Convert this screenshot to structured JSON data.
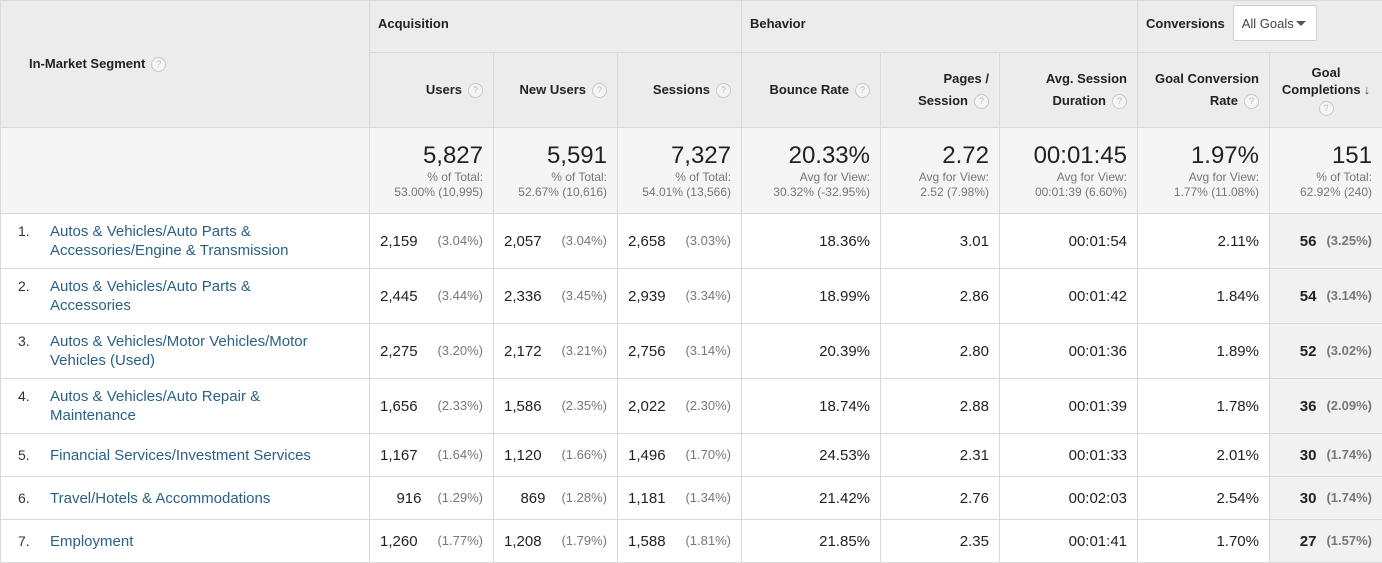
{
  "header": {
    "segment_label": "In-Market Segment",
    "groups": {
      "acquisition": "Acquisition",
      "behavior": "Behavior",
      "conversions": "Conversions"
    },
    "goal_select_value": "All Goals",
    "columns": {
      "users": "Users",
      "new_users": "New Users",
      "sessions": "Sessions",
      "bounce_rate": "Bounce Rate",
      "pages_line1": "Pages /",
      "pages_line2": "Session",
      "duration_line1": "Avg. Session",
      "duration_line2": "Duration",
      "gcr_line1": "Goal Conversion",
      "gcr_line2": "Rate",
      "gc_line1": "Goal",
      "gc_line2": "Completions"
    },
    "help_glyph": "?",
    "sort_glyph": "↓"
  },
  "totals": {
    "users": {
      "value": "5,827",
      "line1": "% of Total:",
      "line2": "53.00% (10,995)"
    },
    "new_users": {
      "value": "5,591",
      "line1": "% of Total:",
      "line2": "52.67% (10,616)"
    },
    "sessions": {
      "value": "7,327",
      "line1": "% of Total:",
      "line2": "54.01% (13,566)"
    },
    "bounce_rate": {
      "value": "20.33%",
      "line1": "Avg for View:",
      "line2": "30.32% (-32.95%)"
    },
    "pages": {
      "value": "2.72",
      "line1": "Avg for View:",
      "line2": "2.52 (7.98%)"
    },
    "duration": {
      "value": "00:01:45",
      "line1": "Avg for View:",
      "line2": "00:01:39 (6.60%)"
    },
    "gcr": {
      "value": "1.97%",
      "line1": "Avg for View:",
      "line2": "1.77% (11.08%)"
    },
    "gc": {
      "value": "151",
      "line1": "% of Total:",
      "line2": "62.92% (240)"
    }
  },
  "rows": [
    {
      "num": "1.",
      "seg1": "Autos & Vehicles/Auto Parts &",
      "seg2": "Accessories/Engine & Transmission",
      "users": "2,159",
      "users_pct": "(3.04%)",
      "new": "2,057",
      "new_pct": "(3.04%)",
      "sessions": "2,658",
      "sessions_pct": "(3.03%)",
      "bounce": "18.36%",
      "pages": "3.01",
      "duration": "00:01:54",
      "gcr": "2.11%",
      "gc": "56",
      "gc_pct": "(3.25%)"
    },
    {
      "num": "2.",
      "seg1": "Autos & Vehicles/Auto Parts &",
      "seg2": "Accessories",
      "users": "2,445",
      "users_pct": "(3.44%)",
      "new": "2,336",
      "new_pct": "(3.45%)",
      "sessions": "2,939",
      "sessions_pct": "(3.34%)",
      "bounce": "18.99%",
      "pages": "2.86",
      "duration": "00:01:42",
      "gcr": "1.84%",
      "gc": "54",
      "gc_pct": "(3.14%)"
    },
    {
      "num": "3.",
      "seg1": "Autos & Vehicles/Motor Vehicles/Motor",
      "seg2": "Vehicles (Used)",
      "users": "2,275",
      "users_pct": "(3.20%)",
      "new": "2,172",
      "new_pct": "(3.21%)",
      "sessions": "2,756",
      "sessions_pct": "(3.14%)",
      "bounce": "20.39%",
      "pages": "2.80",
      "duration": "00:01:36",
      "gcr": "1.89%",
      "gc": "52",
      "gc_pct": "(3.02%)"
    },
    {
      "num": "4.",
      "seg1": "Autos & Vehicles/Auto Repair &",
      "seg2": "Maintenance",
      "users": "1,656",
      "users_pct": "(2.33%)",
      "new": "1,586",
      "new_pct": "(2.35%)",
      "sessions": "2,022",
      "sessions_pct": "(2.30%)",
      "bounce": "18.74%",
      "pages": "2.88",
      "duration": "00:01:39",
      "gcr": "1.78%",
      "gc": "36",
      "gc_pct": "(2.09%)"
    },
    {
      "num": "5.",
      "seg1": "Financial Services/Investment Services",
      "seg2": "",
      "users": "1,167",
      "users_pct": "(1.64%)",
      "new": "1,120",
      "new_pct": "(1.66%)",
      "sessions": "1,496",
      "sessions_pct": "(1.70%)",
      "bounce": "24.53%",
      "pages": "2.31",
      "duration": "00:01:33",
      "gcr": "2.01%",
      "gc": "30",
      "gc_pct": "(1.74%)"
    },
    {
      "num": "6.",
      "seg1": "Travel/Hotels & Accommodations",
      "seg2": "",
      "users": "916",
      "users_pct": "(1.29%)",
      "new": "869",
      "new_pct": "(1.28%)",
      "sessions": "1,181",
      "sessions_pct": "(1.34%)",
      "bounce": "21.42%",
      "pages": "2.76",
      "duration": "00:02:03",
      "gcr": "2.54%",
      "gc": "30",
      "gc_pct": "(1.74%)"
    },
    {
      "num": "7.",
      "seg1": "Employment",
      "seg2": "",
      "users": "1,260",
      "users_pct": "(1.77%)",
      "new": "1,208",
      "new_pct": "(1.79%)",
      "sessions": "1,588",
      "sessions_pct": "(1.81%)",
      "bounce": "21.85%",
      "pages": "2.35",
      "duration": "00:01:41",
      "gcr": "1.70%",
      "gc": "27",
      "gc_pct": "(1.57%)"
    }
  ]
}
